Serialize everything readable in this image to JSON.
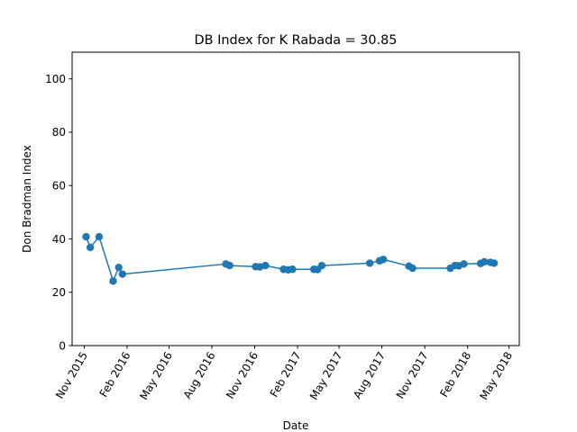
{
  "chart_data": {
    "type": "line",
    "title": "DB Index for K Rabada = 30.85",
    "xlabel": "Date",
    "ylabel": "Don Bradman Index",
    "ylim": [
      0,
      110
    ],
    "xlim": [
      "2015-10-06",
      "2018-05-23"
    ],
    "yticks": [
      0,
      20,
      40,
      60,
      80,
      100
    ],
    "xticks": [
      {
        "date": "2015-11-01",
        "label": "Nov 2015"
      },
      {
        "date": "2016-02-01",
        "label": "Feb 2016"
      },
      {
        "date": "2016-05-01",
        "label": "May 2016"
      },
      {
        "date": "2016-08-01",
        "label": "Aug 2016"
      },
      {
        "date": "2016-11-01",
        "label": "Nov 2016"
      },
      {
        "date": "2017-02-01",
        "label": "Feb 2017"
      },
      {
        "date": "2017-05-01",
        "label": "May 2017"
      },
      {
        "date": "2017-08-01",
        "label": "Aug 2017"
      },
      {
        "date": "2017-11-01",
        "label": "Nov 2017"
      },
      {
        "date": "2018-02-01",
        "label": "Feb 2018"
      },
      {
        "date": "2018-05-01",
        "label": "May 2018"
      }
    ],
    "grid": false,
    "marker": "circle",
    "color": "#1f77b4",
    "series": [
      {
        "points": [
          {
            "x": "2015-11-05",
            "y": 40.8
          },
          {
            "x": "2015-11-14",
            "y": 36.8
          },
          {
            "x": "2015-12-03",
            "y": 40.8
          },
          {
            "x": "2016-01-02",
            "y": 24.2
          },
          {
            "x": "2016-01-14",
            "y": 29.3
          },
          {
            "x": "2016-01-22",
            "y": 26.8
          },
          {
            "x": "2016-08-31",
            "y": 30.6
          },
          {
            "x": "2016-09-08",
            "y": 30.0
          },
          {
            "x": "2016-11-03",
            "y": 29.6
          },
          {
            "x": "2016-11-12",
            "y": 29.5
          },
          {
            "x": "2016-11-24",
            "y": 30.0
          },
          {
            "x": "2017-01-02",
            "y": 28.6
          },
          {
            "x": "2017-01-12",
            "y": 28.4
          },
          {
            "x": "2017-01-21",
            "y": 28.6
          },
          {
            "x": "2017-03-08",
            "y": 28.6
          },
          {
            "x": "2017-03-16",
            "y": 28.5
          },
          {
            "x": "2017-03-25",
            "y": 30.0
          },
          {
            "x": "2017-07-06",
            "y": 30.9
          },
          {
            "x": "2017-07-27",
            "y": 31.8
          },
          {
            "x": "2017-08-04",
            "y": 32.3
          },
          {
            "x": "2017-09-28",
            "y": 29.8
          },
          {
            "x": "2017-10-06",
            "y": 29.0
          },
          {
            "x": "2017-12-26",
            "y": 29.0
          },
          {
            "x": "2018-01-05",
            "y": 30.0
          },
          {
            "x": "2018-01-13",
            "y": 29.9
          },
          {
            "x": "2018-01-24",
            "y": 30.6
          },
          {
            "x": "2018-03-01",
            "y": 30.8
          },
          {
            "x": "2018-03-09",
            "y": 31.4
          },
          {
            "x": "2018-03-22",
            "y": 31.2
          },
          {
            "x": "2018-03-30",
            "y": 30.9
          }
        ]
      }
    ]
  }
}
